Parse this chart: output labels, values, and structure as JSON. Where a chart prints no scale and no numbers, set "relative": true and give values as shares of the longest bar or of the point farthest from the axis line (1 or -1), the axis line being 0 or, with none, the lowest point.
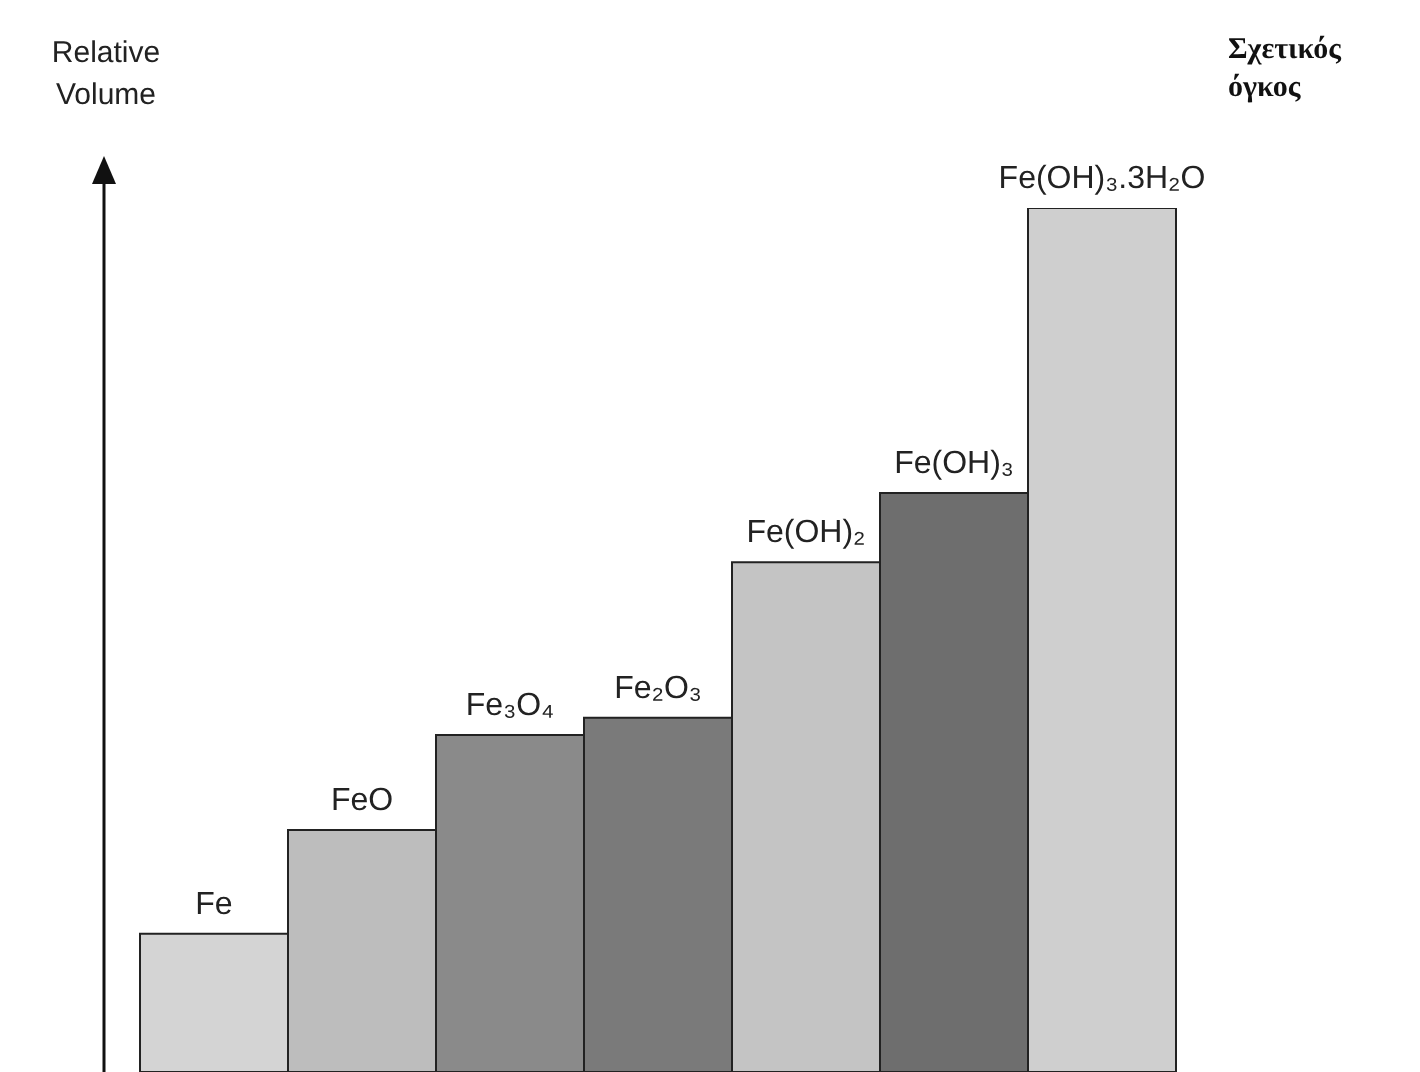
{
  "chart_data": {
    "type": "bar",
    "relative": true,
    "ylabel": "Relative Volume",
    "annotations": [
      "Σχετικός όγκος"
    ],
    "categories": [
      "Fe",
      "FeO",
      "Fe₃O₄",
      "Fe₂O₃",
      "Fe(OH)₂",
      "Fe(OH)₃",
      "Fe(OH)₃.3H₂O"
    ],
    "values": [
      0.16,
      0.28,
      0.39,
      0.41,
      0.59,
      0.67,
      1
    ],
    "colors": [
      "#d4d4d4",
      "#bdbdbd",
      "#8a8a8a",
      "#7a7a7a",
      "#c4c4c4",
      "#6e6e6e",
      "#cfcfcf"
    ]
  }
}
